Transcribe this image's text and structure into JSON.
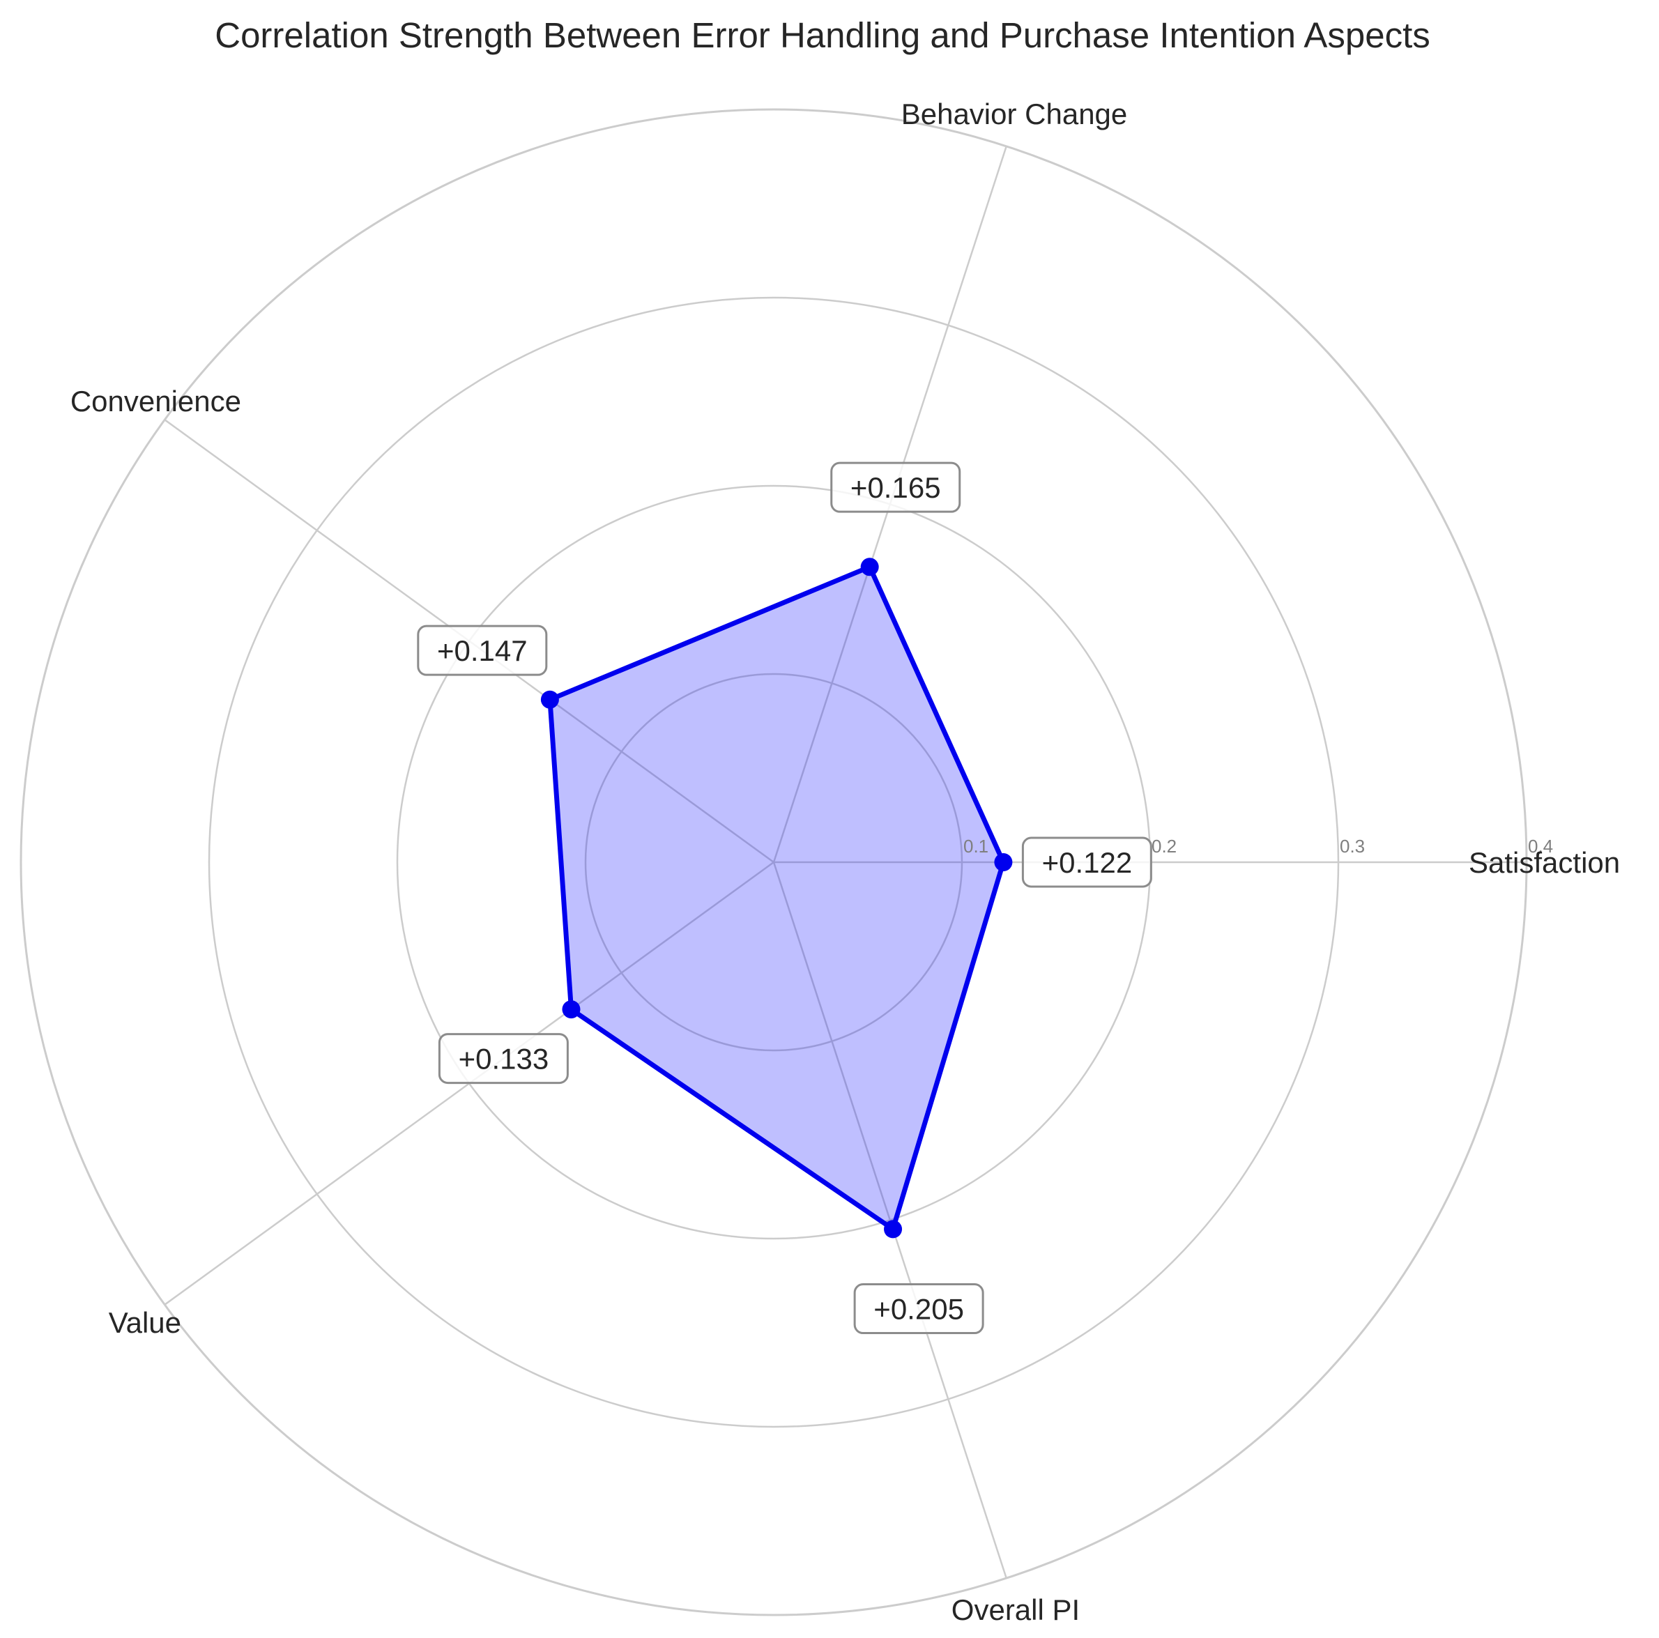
{
  "chart_data": {
    "type": "radar",
    "title": "Correlation Strength Between Error Handling and Purchase Intention Aspects",
    "categories": [
      "Satisfaction",
      "Behavior Change",
      "Convenience",
      "Value",
      "Overall PI"
    ],
    "series": [
      {
        "values": [
          0.122,
          0.165,
          0.147,
          0.133,
          0.205
        ],
        "labels": [
          "+0.122",
          "+0.165",
          "+0.147",
          "+0.133",
          "+0.205"
        ]
      }
    ],
    "radial_ticks": [
      0.1,
      0.2,
      0.3,
      0.4
    ],
    "radial_tick_labels": [
      "0.1",
      "0.2",
      "0.3",
      "0.4"
    ],
    "rlim": [
      0,
      0.4
    ],
    "grid": true,
    "colors": {
      "line": "#0000ee",
      "fill": "#bcbcff",
      "grid": "#cccccc",
      "tick_text": "#7f7f7f",
      "text": "#262626",
      "label_border": "#8c8c8c"
    }
  }
}
